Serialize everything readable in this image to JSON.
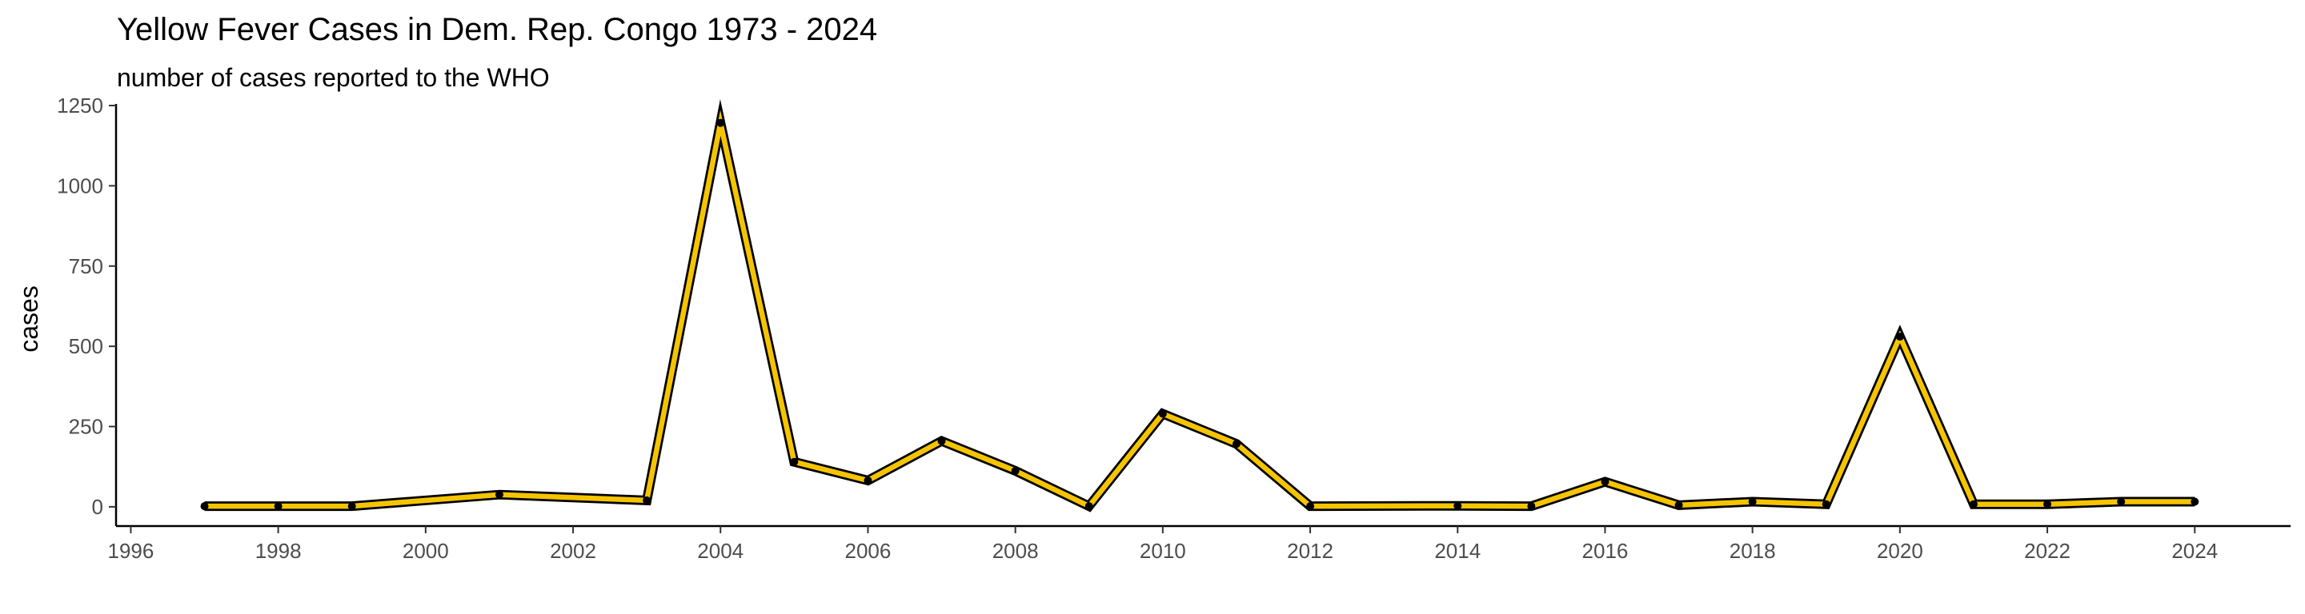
{
  "chart_data": {
    "type": "line",
    "title": "Yellow Fever Cases in Dem. Rep. Congo 1973 - 2024",
    "subtitle": "number of cases reported to the WHO",
    "xlabel": "",
    "ylabel": "cases",
    "xlim": [
      1995.8,
      2025.3
    ],
    "ylim": [
      -60,
      1255
    ],
    "x_ticks": [
      1996,
      1998,
      2000,
      2002,
      2004,
      2006,
      2008,
      2010,
      2012,
      2014,
      2016,
      2018,
      2020,
      2022,
      2024
    ],
    "y_ticks": [
      0,
      250,
      500,
      750,
      1000,
      1250
    ],
    "grid": false,
    "series": [
      {
        "x": [
          1997,
          1998,
          1999,
          2001,
          2003,
          2004,
          2005,
          2006,
          2007,
          2008,
          2009,
          2010,
          2011,
          2012,
          2014,
          2015,
          2016,
          2017,
          2018,
          2019,
          2020,
          2021,
          2022,
          2023,
          2024
        ],
        "values": [
          2,
          2,
          2,
          38,
          20,
          1196,
          140,
          82,
          205,
          112,
          2,
          290,
          196,
          2,
          3,
          2,
          78,
          5,
          16,
          8,
          530,
          8,
          8,
          16,
          16
        ],
        "color": "#F5C400"
      }
    ],
    "colors": {
      "line_fill": "#F5C400",
      "line_edge": "#000000",
      "point": "#000000",
      "axis": "#000000"
    }
  }
}
